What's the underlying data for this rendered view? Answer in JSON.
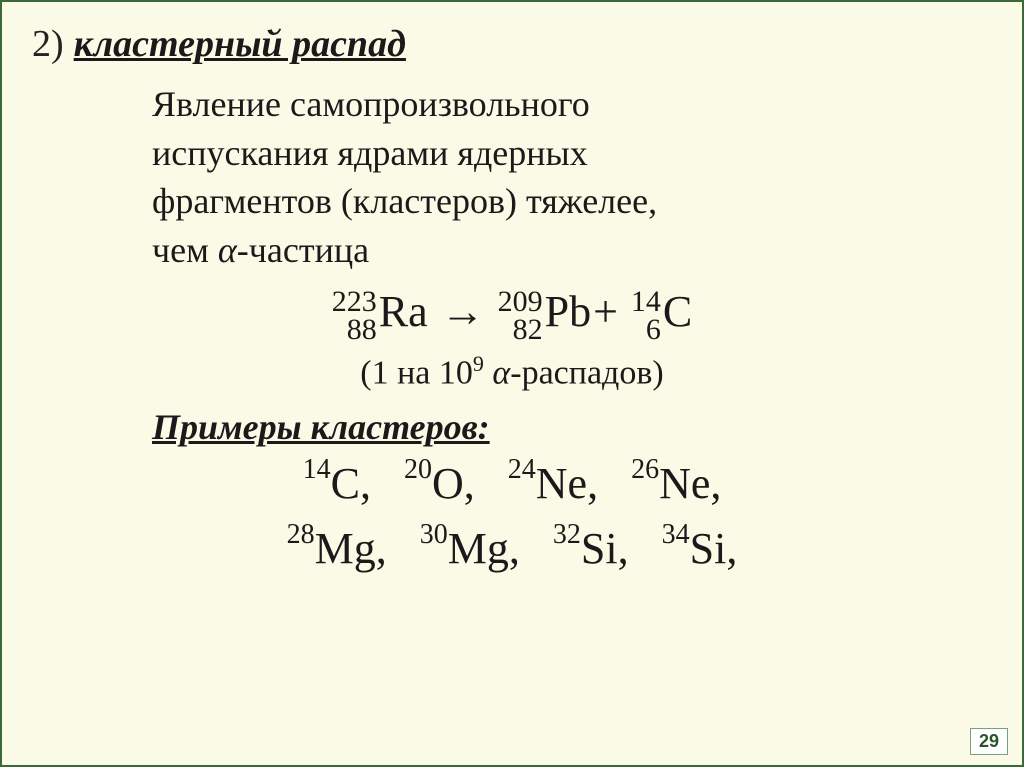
{
  "heading": {
    "number": "2)",
    "title": "кластерный распад"
  },
  "definition": {
    "line1": "Явление самопроизвольного",
    "line2": "испускания ядрами ядерных",
    "line3": "фрагментов (кластеров) тяжелее,",
    "line4_prefix": "чем ",
    "line4_alpha": "α",
    "line4_suffix": "-частица"
  },
  "equation": {
    "lhs": {
      "A": "223",
      "Z": "88",
      "sym": "Ra"
    },
    "arrow": "→",
    "r1": {
      "A": "209",
      "Z": "82",
      "sym": "Pb"
    },
    "plus": "+",
    "r2": {
      "A": "14",
      "Z": "6",
      "sym": "C"
    }
  },
  "rate": {
    "open": "(",
    "one": "1",
    "na": " на ",
    "base": "10",
    "exp": "9",
    "space": " ",
    "alpha": "α",
    "suffix": "-распадов",
    "close": ")"
  },
  "clusters_heading": "Примеры кластеров:",
  "clusters": {
    "row1": [
      {
        "A": "14",
        "sym": "C"
      },
      {
        "A": "20",
        "sym": "O"
      },
      {
        "A": "24",
        "sym": "Ne"
      },
      {
        "A": "26",
        "sym": "Ne"
      }
    ],
    "row2": [
      {
        "A": "28",
        "sym": "Mg"
      },
      {
        "A": "30",
        "sym": "Mg"
      },
      {
        "A": "32",
        "sym": "Si"
      },
      {
        "A": "34",
        "sym": "Si"
      }
    ],
    "sep": ",",
    "gap": "   "
  },
  "page_number": "29",
  "colors": {
    "background": "#fafae6",
    "border": "#3a6a3a",
    "text": "#1a1a1a",
    "pagenum_bg": "#ffffff",
    "pagenum_border": "#7aa07a",
    "pagenum_text": "#2a552a"
  },
  "fonts": {
    "body": "Georgia / Times New Roman, serif",
    "heading_size_pt": 28,
    "definition_size_pt": 27,
    "equation_size_pt": 33,
    "cluster_size_pt": 33,
    "subtext_size_pt": 26
  }
}
